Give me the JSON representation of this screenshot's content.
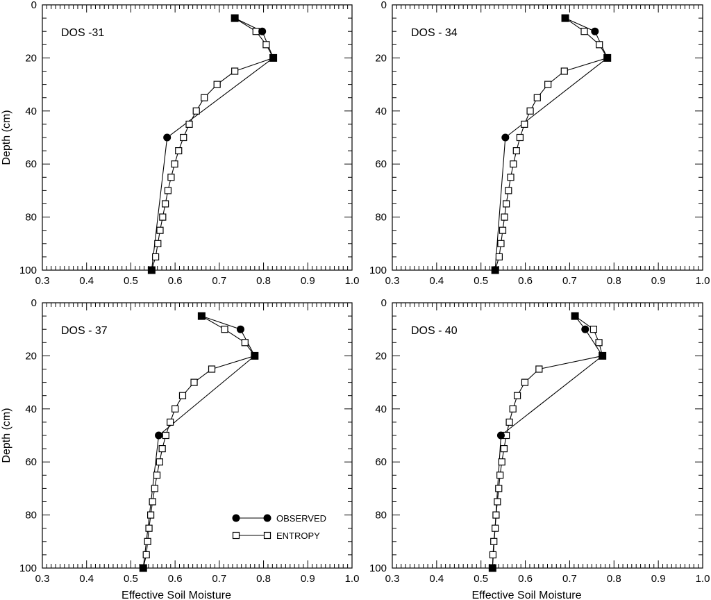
{
  "chart_data": [
    {
      "type": "line",
      "panel_label": "DOS -31",
      "xlabel": "",
      "ylabel": "Depth (cm)",
      "xlim": [
        0.3,
        1.0
      ],
      "ylim": [
        100,
        0
      ],
      "xticks": [
        "0.3",
        "0.4",
        "0.5",
        "0.6",
        "0.7",
        "0.8",
        "0.9",
        "1.0"
      ],
      "yticks": [
        "0",
        "20",
        "40",
        "60",
        "80",
        "100"
      ],
      "series": [
        {
          "name": "OBSERVED",
          "marker": "filled-circle",
          "points": [
            [
              0.735,
              5
            ],
            [
              0.797,
              10
            ],
            [
              0.822,
              20
            ],
            [
              0.582,
              50
            ],
            [
              0.547,
              100
            ]
          ]
        },
        {
          "name": "ENTROPY",
          "marker": "open-square",
          "points": [
            [
              0.735,
              5
            ],
            [
              0.783,
              10
            ],
            [
              0.806,
              15
            ],
            [
              0.822,
              20
            ],
            [
              0.735,
              25
            ],
            [
              0.695,
              30
            ],
            [
              0.666,
              35
            ],
            [
              0.648,
              40
            ],
            [
              0.632,
              45
            ],
            [
              0.619,
              50
            ],
            [
              0.608,
              55
            ],
            [
              0.599,
              60
            ],
            [
              0.591,
              65
            ],
            [
              0.584,
              70
            ],
            [
              0.578,
              75
            ],
            [
              0.572,
              80
            ],
            [
              0.566,
              85
            ],
            [
              0.561,
              90
            ],
            [
              0.556,
              95
            ],
            [
              0.547,
              100
            ]
          ]
        }
      ]
    },
    {
      "type": "line",
      "panel_label": "DOS - 34",
      "xlabel": "",
      "ylabel": "",
      "xlim": [
        0.3,
        1.0
      ],
      "ylim": [
        100,
        0
      ],
      "xticks": [
        "0.3",
        "0.4",
        "0.5",
        "0.6",
        "0.7",
        "0.8",
        "0.9",
        "1.0"
      ],
      "yticks": [
        "0",
        "20",
        "40",
        "60",
        "80",
        "100"
      ],
      "series": [
        {
          "name": "OBSERVED",
          "marker": "filled-circle",
          "points": [
            [
              0.69,
              5
            ],
            [
              0.757,
              10
            ],
            [
              0.785,
              20
            ],
            [
              0.555,
              50
            ],
            [
              0.532,
              100
            ]
          ]
        },
        {
          "name": "ENTROPY",
          "marker": "open-square",
          "points": [
            [
              0.69,
              5
            ],
            [
              0.733,
              10
            ],
            [
              0.767,
              15
            ],
            [
              0.785,
              20
            ],
            [
              0.688,
              25
            ],
            [
              0.651,
              30
            ],
            [
              0.627,
              35
            ],
            [
              0.611,
              40
            ],
            [
              0.598,
              45
            ],
            [
              0.588,
              50
            ],
            [
              0.58,
              55
            ],
            [
              0.573,
              60
            ],
            [
              0.567,
              65
            ],
            [
              0.562,
              70
            ],
            [
              0.557,
              75
            ],
            [
              0.553,
              80
            ],
            [
              0.549,
              85
            ],
            [
              0.545,
              90
            ],
            [
              0.541,
              95
            ],
            [
              0.532,
              100
            ]
          ]
        }
      ]
    },
    {
      "type": "line",
      "panel_label": "DOS - 37",
      "xlabel": "Effective Soil Moisture",
      "ylabel": "Depth (cm)",
      "xlim": [
        0.3,
        1.0
      ],
      "ylim": [
        100,
        0
      ],
      "xticks": [
        "0.3",
        "0.4",
        "0.5",
        "0.6",
        "0.7",
        "0.8",
        "0.9",
        "1.0"
      ],
      "yticks": [
        "0",
        "20",
        "40",
        "60",
        "80",
        "100"
      ],
      "series": [
        {
          "name": "OBSERVED",
          "marker": "filled-circle",
          "points": [
            [
              0.66,
              5
            ],
            [
              0.748,
              10
            ],
            [
              0.78,
              20
            ],
            [
              0.563,
              50
            ],
            [
              0.528,
              100
            ]
          ]
        },
        {
          "name": "ENTROPY",
          "marker": "open-square",
          "points": [
            [
              0.66,
              5
            ],
            [
              0.712,
              10
            ],
            [
              0.758,
              15
            ],
            [
              0.78,
              20
            ],
            [
              0.683,
              25
            ],
            [
              0.643,
              30
            ],
            [
              0.617,
              35
            ],
            [
              0.6,
              40
            ],
            [
              0.589,
              45
            ],
            [
              0.579,
              50
            ],
            [
              0.571,
              55
            ],
            [
              0.565,
              60
            ],
            [
              0.559,
              65
            ],
            [
              0.554,
              70
            ],
            [
              0.549,
              75
            ],
            [
              0.545,
              80
            ],
            [
              0.541,
              85
            ],
            [
              0.538,
              90
            ],
            [
              0.535,
              95
            ],
            [
              0.528,
              100
            ]
          ]
        }
      ]
    },
    {
      "type": "line",
      "panel_label": "DOS - 40",
      "xlabel": "Effective Soil Moisture",
      "ylabel": "",
      "xlim": [
        0.3,
        1.0
      ],
      "ylim": [
        100,
        0
      ],
      "xticks": [
        "0.3",
        "0.4",
        "0.5",
        "0.6",
        "0.7",
        "0.8",
        "0.9",
        "1.0"
      ],
      "yticks": [
        "0",
        "20",
        "40",
        "60",
        "80",
        "100"
      ],
      "series": [
        {
          "name": "OBSERVED",
          "marker": "filled-circle",
          "points": [
            [
              0.712,
              5
            ],
            [
              0.735,
              10
            ],
            [
              0.774,
              20
            ],
            [
              0.545,
              50
            ],
            [
              0.526,
              100
            ]
          ]
        },
        {
          "name": "ENTROPY",
          "marker": "open-square",
          "points": [
            [
              0.712,
              5
            ],
            [
              0.754,
              10
            ],
            [
              0.766,
              15
            ],
            [
              0.774,
              20
            ],
            [
              0.631,
              25
            ],
            [
              0.599,
              30
            ],
            [
              0.582,
              35
            ],
            [
              0.572,
              40
            ],
            [
              0.564,
              45
            ],
            [
              0.557,
              50
            ],
            [
              0.552,
              55
            ],
            [
              0.547,
              60
            ],
            [
              0.543,
              65
            ],
            [
              0.54,
              70
            ],
            [
              0.537,
              75
            ],
            [
              0.534,
              80
            ],
            [
              0.532,
              85
            ],
            [
              0.529,
              90
            ],
            [
              0.527,
              95
            ],
            [
              0.526,
              100
            ]
          ]
        }
      ]
    }
  ],
  "legend": {
    "entries": [
      {
        "label": "OBSERVED",
        "marker": "filled-circle"
      },
      {
        "label": "ENTROPY",
        "marker": "open-square"
      }
    ],
    "placement": "bottom-right of lower-left panel"
  }
}
